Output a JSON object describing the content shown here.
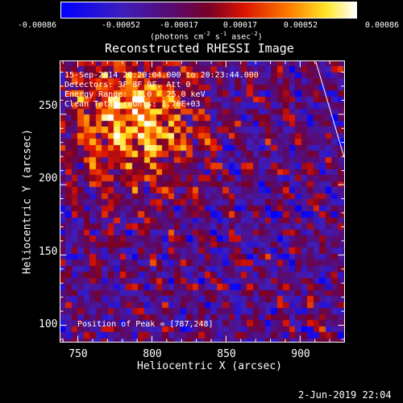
{
  "colorbar": {
    "tick_labels": [
      "-0.00086",
      "-0.00052",
      "-0.00017",
      "0.00017",
      "0.00052",
      "0.00086"
    ],
    "range": [
      -0.00086,
      0.00086
    ],
    "colormap": "blue-purple-red-orange-yellow-white",
    "units_prefix": "(photons cm",
    "units_exp1": "-2",
    "units_mid1": " s",
    "units_exp2": "-1",
    "units_mid2": " asec",
    "units_exp3": "-2",
    "units_suffix": ")"
  },
  "image": {
    "title": "Reconstructed RHESSI Image",
    "time_range": "15-Sep-2014 20:20:04.000 to 20:23:44.000",
    "detectors": "Detectors: 3F 8F 9F, Att 0",
    "energy_range": "Energy Range: 12.0 - 25.0 keV",
    "counts": "Clean    Total counts: 1.70E+03",
    "peak_position": "Position of Peak = [787,248]",
    "peak": [
      787,
      248
    ],
    "xlabel": "Heliocentric X (arcsec)",
    "ylabel": "Heliocentric Y (arcsec)",
    "xticks": [
      "750",
      "800",
      "850",
      "900"
    ],
    "yticks": [
      "100",
      "150",
      "200",
      "250"
    ],
    "xrange": [
      738,
      930
    ],
    "yrange": [
      88,
      288
    ]
  },
  "footer": {
    "date": "2-Jun-2019 22:04"
  }
}
